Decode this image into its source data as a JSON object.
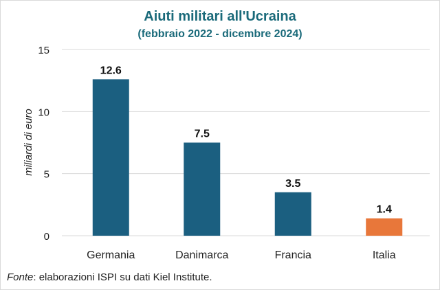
{
  "chart_data": {
    "type": "bar",
    "title": "Aiuti militari all'Ucraina",
    "subtitle": "(febbraio 2022 - dicembre 2024)",
    "categories": [
      "Germania",
      "Danimarca",
      "Francia",
      "Italia"
    ],
    "values": [
      12.6,
      7.5,
      3.5,
      1.4
    ],
    "value_labels": [
      "12.6",
      "7.5",
      "3.5",
      "1.4"
    ],
    "xlabel": "",
    "ylabel": "miliardi di euro",
    "ylim": [
      0,
      15
    ],
    "yticks": [
      0,
      5,
      10,
      15
    ],
    "grid": true,
    "colors": [
      "#1b5f80",
      "#1b5f80",
      "#1b5f80",
      "#e8773a"
    ]
  },
  "footer": {
    "source_label": "Fonte",
    "source_text": ": elaborazioni ISPI su dati Kiel Institute."
  },
  "colors": {
    "title": "#1a6a7a",
    "grid": "#d9d9d9",
    "bar_primary": "#1b5f80",
    "bar_highlight": "#e8773a"
  }
}
